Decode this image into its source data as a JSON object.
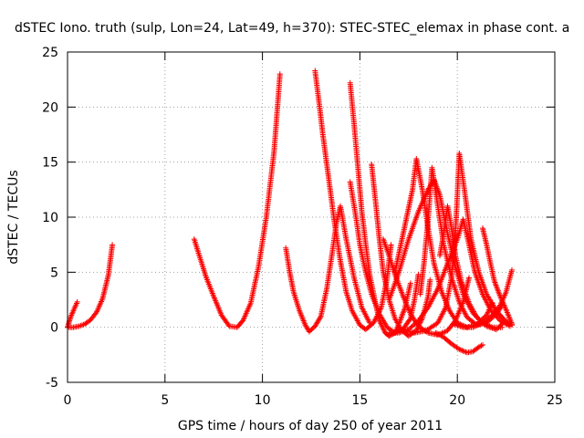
{
  "chart_data": {
    "type": "scatter",
    "title": "dSTEC Iono. truth (sulp, Lon=24, Lat=49, h=370): STEC-STEC_elemax in phase cont. a",
    "xlabel": "GPS time / hours of day 250 of year 2011",
    "ylabel": "dSTEC  / TECUs",
    "xlim": [
      0,
      25
    ],
    "ylim": [
      -5,
      25
    ],
    "xticks": [
      0,
      5,
      10,
      15,
      20,
      25
    ],
    "yticks": [
      -5,
      0,
      5,
      10,
      15,
      20,
      25
    ],
    "grid": true,
    "marker": "+",
    "color": "#ff0000",
    "series": [
      {
        "points": [
          [
            0.0,
            0.0
          ],
          [
            0.1,
            0.6
          ],
          [
            0.2,
            1.1
          ],
          [
            0.3,
            1.5
          ],
          [
            0.4,
            1.9
          ],
          [
            0.5,
            2.3
          ]
        ]
      },
      {
        "points": [
          [
            0.0,
            0.0
          ],
          [
            0.3,
            0.0
          ],
          [
            0.6,
            0.1
          ],
          [
            0.9,
            0.3
          ],
          [
            1.2,
            0.7
          ],
          [
            1.5,
            1.4
          ],
          [
            1.8,
            2.6
          ],
          [
            2.1,
            4.8
          ],
          [
            2.3,
            7.5
          ]
        ]
      },
      {
        "points": [
          [
            6.5,
            8.0
          ],
          [
            6.8,
            6.3
          ],
          [
            7.1,
            4.6
          ],
          [
            7.5,
            2.8
          ],
          [
            7.9,
            1.1
          ],
          [
            8.3,
            0.1
          ],
          [
            8.7,
            0.0
          ],
          [
            9.0,
            0.6
          ],
          [
            9.4,
            2.2
          ],
          [
            9.8,
            5.5
          ],
          [
            10.2,
            10.0
          ],
          [
            10.6,
            16.0
          ],
          [
            10.9,
            23.0
          ]
        ]
      },
      {
        "points": [
          [
            11.2,
            7.2
          ],
          [
            11.4,
            5.0
          ],
          [
            11.6,
            3.2
          ],
          [
            11.9,
            1.5
          ],
          [
            12.2,
            0.2
          ],
          [
            12.4,
            -0.4
          ],
          [
            12.7,
            0.1
          ],
          [
            13.0,
            1.0
          ],
          [
            13.3,
            3.5
          ],
          [
            13.6,
            7.0
          ],
          [
            13.8,
            9.5
          ],
          [
            14.0,
            11.0
          ],
          [
            14.3,
            8.0
          ],
          [
            14.7,
            4.5
          ],
          [
            15.1,
            1.8
          ],
          [
            15.5,
            0.4
          ]
        ]
      },
      {
        "points": [
          [
            12.7,
            23.3
          ],
          [
            12.9,
            20.5
          ],
          [
            13.1,
            17.5
          ],
          [
            13.4,
            13.5
          ],
          [
            13.7,
            9.5
          ],
          [
            14.0,
            6.0
          ],
          [
            14.3,
            3.2
          ],
          [
            14.6,
            1.5
          ],
          [
            15.0,
            0.2
          ],
          [
            15.3,
            -0.2
          ],
          [
            15.7,
            0.4
          ],
          [
            16.1,
            1.8
          ],
          [
            16.4,
            4.5
          ],
          [
            16.6,
            7.5
          ]
        ]
      },
      {
        "points": [
          [
            14.5,
            22.2
          ],
          [
            14.7,
            18.5
          ],
          [
            14.9,
            14.5
          ],
          [
            15.1,
            10.5
          ],
          [
            15.3,
            7.5
          ],
          [
            15.5,
            4.8
          ],
          [
            15.8,
            2.2
          ],
          [
            16.0,
            0.6
          ],
          [
            16.3,
            -0.5
          ],
          [
            16.5,
            -0.8
          ],
          [
            16.8,
            -0.5
          ],
          [
            17.0,
            0.3
          ],
          [
            17.3,
            1.7
          ],
          [
            17.6,
            4.0
          ]
        ]
      },
      {
        "points": [
          [
            14.5,
            13.2
          ],
          [
            14.8,
            10.0
          ],
          [
            15.0,
            7.5
          ],
          [
            15.3,
            5.0
          ],
          [
            15.6,
            3.0
          ],
          [
            16.0,
            1.2
          ],
          [
            16.4,
            0.0
          ],
          [
            16.8,
            -0.5
          ],
          [
            17.2,
            -0.2
          ],
          [
            17.6,
            0.8
          ],
          [
            17.8,
            2.5
          ],
          [
            18.0,
            4.8
          ]
        ]
      },
      {
        "points": [
          [
            15.6,
            14.8
          ],
          [
            15.8,
            11.5
          ],
          [
            16.0,
            8.0
          ],
          [
            16.2,
            5.0
          ],
          [
            16.5,
            2.5
          ],
          [
            16.8,
            0.8
          ],
          [
            17.1,
            -0.2
          ],
          [
            17.5,
            -0.8
          ],
          [
            17.9,
            -0.3
          ],
          [
            18.2,
            0.8
          ],
          [
            18.5,
            2.8
          ],
          [
            18.6,
            4.3
          ]
        ]
      },
      {
        "points": [
          [
            16.2,
            8.0
          ],
          [
            16.5,
            6.5
          ],
          [
            16.8,
            4.8
          ],
          [
            17.2,
            2.9
          ],
          [
            17.6,
            1.2
          ],
          [
            18.0,
            0.1
          ],
          [
            18.5,
            -0.5
          ],
          [
            19.0,
            -0.7
          ],
          [
            19.5,
            -0.3
          ],
          [
            19.9,
            0.6
          ],
          [
            20.3,
            2.3
          ],
          [
            20.6,
            4.5
          ]
        ]
      },
      {
        "points": [
          [
            16.8,
            5.0
          ],
          [
            17.1,
            7.5
          ],
          [
            17.4,
            10.0
          ],
          [
            17.7,
            12.5
          ],
          [
            17.9,
            15.3
          ],
          [
            18.2,
            12.5
          ],
          [
            18.5,
            9.0
          ],
          [
            18.8,
            5.8
          ],
          [
            19.2,
            3.2
          ],
          [
            19.6,
            1.5
          ],
          [
            20.0,
            0.4
          ],
          [
            20.5,
            0.0
          ],
          [
            21.0,
            0.3
          ],
          [
            21.5,
            1.1
          ],
          [
            21.8,
            2.2
          ]
        ]
      },
      {
        "points": [
          [
            18.1,
            3.0
          ],
          [
            18.3,
            6.0
          ],
          [
            18.5,
            9.8
          ],
          [
            18.7,
            14.5
          ],
          [
            19.0,
            11.0
          ],
          [
            19.3,
            7.5
          ],
          [
            19.7,
            4.5
          ],
          [
            20.1,
            2.3
          ],
          [
            20.5,
            0.9
          ],
          [
            21.0,
            0.2
          ],
          [
            21.5,
            0.4
          ],
          [
            22.0,
            1.2
          ],
          [
            22.3,
            2.0
          ]
        ]
      },
      {
        "points": [
          [
            16.5,
            2.5
          ],
          [
            17.0,
            5.0
          ],
          [
            17.5,
            8.0
          ],
          [
            18.0,
            10.5
          ],
          [
            18.5,
            12.5
          ],
          [
            18.8,
            13.4
          ],
          [
            19.1,
            12.0
          ],
          [
            19.5,
            8.5
          ],
          [
            19.9,
            5.5
          ],
          [
            20.3,
            3.0
          ],
          [
            20.8,
            1.3
          ],
          [
            21.3,
            0.4
          ],
          [
            21.8,
            0.0
          ],
          [
            22.3,
            0.0
          ]
        ]
      },
      {
        "points": [
          [
            19.1,
            6.5
          ],
          [
            19.3,
            8.5
          ],
          [
            19.5,
            11.0
          ],
          [
            19.7,
            9.0
          ],
          [
            19.9,
            6.5
          ],
          [
            20.2,
            4.2
          ],
          [
            20.6,
            2.2
          ],
          [
            21.0,
            0.9
          ],
          [
            21.5,
            0.1
          ],
          [
            22.0,
            -0.2
          ],
          [
            22.3,
            0.3
          ]
        ]
      },
      {
        "points": [
          [
            16.5,
            -0.5
          ],
          [
            17.0,
            -0.5
          ],
          [
            17.5,
            -0.2
          ],
          [
            18.0,
            0.6
          ],
          [
            18.5,
            1.8
          ],
          [
            19.0,
            3.5
          ],
          [
            19.5,
            5.8
          ],
          [
            20.0,
            8.0
          ],
          [
            20.3,
            9.8
          ],
          [
            20.6,
            7.5
          ],
          [
            20.9,
            5.0
          ],
          [
            21.3,
            3.0
          ],
          [
            21.7,
            1.6
          ],
          [
            22.2,
            0.6
          ],
          [
            22.7,
            0.1
          ]
        ]
      },
      {
        "points": [
          [
            17.2,
            -0.3
          ],
          [
            17.8,
            -0.5
          ],
          [
            18.4,
            -0.3
          ],
          [
            19.0,
            0.4
          ],
          [
            19.4,
            1.8
          ],
          [
            19.7,
            4.5
          ],
          [
            19.9,
            8.5
          ],
          [
            20.0,
            12.0
          ],
          [
            20.1,
            15.8
          ],
          [
            20.4,
            12.0
          ],
          [
            20.7,
            8.0
          ],
          [
            21.1,
            5.0
          ],
          [
            21.5,
            3.0
          ],
          [
            22.0,
            1.5
          ],
          [
            22.4,
            0.7
          ],
          [
            22.8,
            0.2
          ]
        ]
      },
      {
        "points": [
          [
            18.9,
            -0.5
          ],
          [
            19.3,
            -0.9
          ],
          [
            19.7,
            -1.5
          ],
          [
            20.1,
            -2.0
          ],
          [
            20.5,
            -2.3
          ],
          [
            20.8,
            -2.2
          ],
          [
            21.1,
            -1.8
          ],
          [
            21.3,
            -1.6
          ]
        ]
      },
      {
        "points": [
          [
            21.3,
            9.0
          ],
          [
            21.5,
            7.5
          ],
          [
            21.7,
            5.8
          ],
          [
            21.9,
            4.2
          ],
          [
            22.2,
            2.8
          ],
          [
            22.5,
            1.6
          ],
          [
            22.8,
            0.3
          ]
        ]
      },
      {
        "points": [
          [
            19.8,
            0.3
          ],
          [
            20.3,
            0.0
          ],
          [
            20.8,
            0.0
          ],
          [
            21.3,
            0.4
          ],
          [
            21.8,
            1.1
          ],
          [
            22.2,
            2.0
          ],
          [
            22.5,
            3.2
          ],
          [
            22.8,
            5.2
          ]
        ]
      }
    ]
  }
}
